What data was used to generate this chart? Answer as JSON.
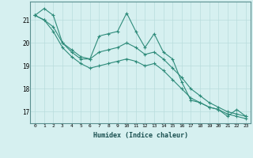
{
  "xlabel": "Humidex (Indice chaleur)",
  "ylabel": "",
  "bg_color": "#d6f0f0",
  "grid_color": "#b8dcdc",
  "line_color": "#2e8b7a",
  "xlim": [
    -0.5,
    23.5
  ],
  "ylim": [
    16.5,
    21.8
  ],
  "yticks": [
    17,
    18,
    19,
    20,
    21
  ],
  "xticks": [
    0,
    1,
    2,
    3,
    4,
    5,
    6,
    7,
    8,
    9,
    10,
    11,
    12,
    13,
    14,
    15,
    16,
    17,
    18,
    19,
    20,
    21,
    22,
    23
  ],
  "series1": [
    21.2,
    21.5,
    21.2,
    20.0,
    19.6,
    19.3,
    19.3,
    20.3,
    20.4,
    20.5,
    21.3,
    20.5,
    19.8,
    20.4,
    19.6,
    19.3,
    18.3,
    17.5,
    17.4,
    17.2,
    17.1,
    16.8,
    17.1,
    16.8
  ],
  "series2": [
    21.2,
    21.0,
    20.7,
    20.0,
    19.7,
    19.4,
    19.3,
    19.6,
    19.7,
    19.8,
    20.0,
    19.8,
    19.5,
    19.6,
    19.3,
    18.9,
    18.5,
    18.0,
    17.7,
    17.4,
    17.2,
    17.0,
    16.9,
    16.8
  ],
  "series3": [
    21.2,
    21.0,
    20.5,
    19.8,
    19.4,
    19.1,
    18.9,
    19.0,
    19.1,
    19.2,
    19.3,
    19.2,
    19.0,
    19.1,
    18.8,
    18.4,
    18.0,
    17.6,
    17.4,
    17.2,
    17.1,
    16.9,
    16.8,
    16.7
  ]
}
